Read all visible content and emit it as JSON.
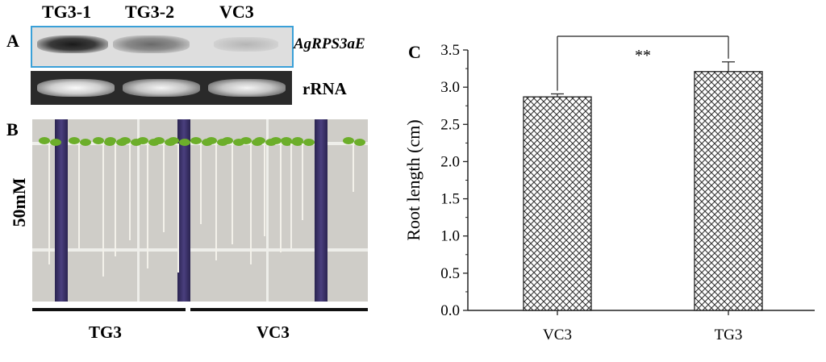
{
  "panel_a": {
    "letter": "A",
    "lanes": [
      "TG3-1",
      "TG3-2",
      "VC3"
    ],
    "gene_label": "AgRPS3aE",
    "rrna_label": "rRNA"
  },
  "panel_b": {
    "letter": "B",
    "condition_label": "50mM",
    "groups": [
      "TG3",
      "VC3"
    ]
  },
  "panel_c": {
    "letter": "C",
    "significance": "**"
  },
  "chart_data": {
    "type": "bar",
    "categories": [
      "VC3",
      "TG3"
    ],
    "values": [
      2.87,
      3.21
    ],
    "errors": [
      0.04,
      0.13
    ],
    "ylabel": "Root length (cm)",
    "xlabel": "",
    "ylim": [
      0.0,
      3.5
    ],
    "yticks": [
      "0.0",
      "0.5",
      "1.0",
      "1.5",
      "2.0",
      "2.5",
      "3.0",
      "3.5"
    ],
    "bar_pattern": "crosshatch",
    "significance": "**",
    "grid": false
  },
  "colors": {
    "gel_frame": "#3aa0d8",
    "strap": "#3a2f6b",
    "leaf": "#6cae2a",
    "tile_bg": "#cfcdc8"
  }
}
